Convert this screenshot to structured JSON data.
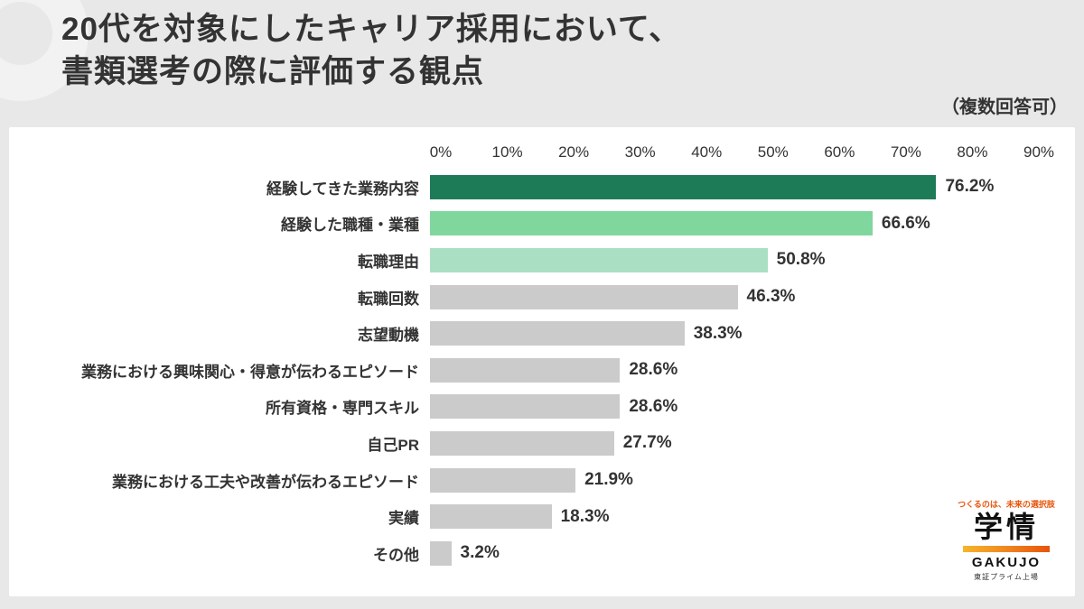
{
  "header": {
    "title_line1": "20代を対象にしたキャリア採用において、",
    "title_line2": "書類選考の際に評価する観点",
    "note": "（複数回答可）"
  },
  "chart_data": {
    "type": "bar",
    "orientation": "horizontal",
    "title": "20代を対象にしたキャリア採用において、書類選考の際に評価する観点",
    "categories": [
      "経験してきた業務内容",
      "経験した職種・業種",
      "転職理由",
      "転職回数",
      "志望動機",
      "業務における興味関心・得意が伝わるエピソード",
      "所有資格・専門スキル",
      "自己PR",
      "業務における工夫や改善が伝わるエピソード",
      "実績",
      "その他"
    ],
    "values": [
      76.2,
      66.6,
      50.8,
      46.3,
      38.3,
      28.6,
      28.6,
      27.7,
      21.9,
      18.3,
      3.2
    ],
    "value_labels": [
      "76.2%",
      "66.6%",
      "50.8%",
      "46.3%",
      "38.3%",
      "28.6%",
      "28.6%",
      "27.7%",
      "21.9%",
      "18.3%",
      "3.2%"
    ],
    "bar_colors": [
      "#1e7b58",
      "#7fd79e",
      "#abdfc3",
      "#cbcbcb",
      "#cbcbcb",
      "#cbcbcb",
      "#cbcbcb",
      "#cbcbcb",
      "#cbcbcb",
      "#cbcbcb",
      "#cbcbcb"
    ],
    "axis": {
      "ticks": [
        "0%",
        "10%",
        "20%",
        "30%",
        "40%",
        "50%",
        "60%",
        "70%",
        "80%",
        "90%"
      ],
      "min": 0,
      "max": 90,
      "position": "top"
    },
    "grid": false,
    "legend": false
  },
  "logo": {
    "tagline": "つくるのは、未来の選択肢",
    "brand": "学情",
    "brand_en": "GAKUJO",
    "sub": "東証プライム上場"
  },
  "colors": {
    "background": "#e8e8e8",
    "panel": "#ffffff",
    "accent_dark_green": "#1e7b58",
    "accent_mid_green": "#7fd79e",
    "accent_light_green": "#abdfc3",
    "bar_gray": "#cbcbcb",
    "text": "#333333",
    "logo_orange": "#e8540a"
  }
}
